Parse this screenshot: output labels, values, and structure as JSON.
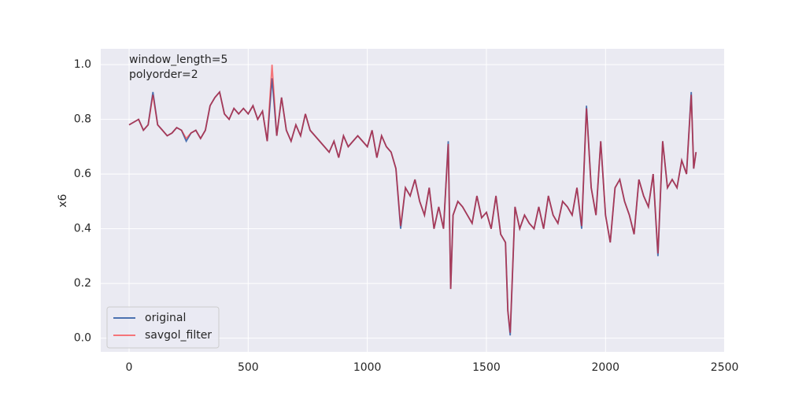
{
  "chart_data": {
    "type": "line",
    "y_label": "x6",
    "annotations": [
      "window_length=5",
      "polyorder=2"
    ],
    "x": [
      0,
      20,
      40,
      60,
      80,
      100,
      120,
      140,
      160,
      180,
      200,
      220,
      240,
      260,
      280,
      300,
      320,
      340,
      360,
      380,
      400,
      420,
      440,
      460,
      480,
      500,
      520,
      540,
      560,
      580,
      600,
      620,
      640,
      660,
      680,
      700,
      720,
      740,
      760,
      780,
      800,
      820,
      840,
      860,
      880,
      900,
      920,
      940,
      960,
      980,
      1000,
      1020,
      1040,
      1060,
      1080,
      1100,
      1120,
      1140,
      1160,
      1180,
      1200,
      1220,
      1240,
      1260,
      1280,
      1300,
      1320,
      1340,
      1350,
      1360,
      1380,
      1400,
      1420,
      1440,
      1460,
      1480,
      1500,
      1520,
      1540,
      1560,
      1580,
      1590,
      1600,
      1620,
      1640,
      1660,
      1680,
      1700,
      1720,
      1740,
      1760,
      1780,
      1800,
      1820,
      1840,
      1860,
      1880,
      1900,
      1920,
      1940,
      1960,
      1980,
      2000,
      2020,
      2040,
      2060,
      2080,
      2100,
      2120,
      2140,
      2160,
      2180,
      2200,
      2220,
      2240,
      2260,
      2280,
      2300,
      2320,
      2340,
      2360,
      2370,
      2380
    ],
    "series": [
      {
        "name": "original",
        "color": "#4c72b0",
        "alpha": 1,
        "values": [
          0.78,
          0.79,
          0.8,
          0.76,
          0.78,
          0.9,
          0.78,
          0.76,
          0.74,
          0.75,
          0.77,
          0.76,
          0.72,
          0.75,
          0.76,
          0.73,
          0.76,
          0.85,
          0.88,
          0.9,
          0.82,
          0.8,
          0.84,
          0.82,
          0.84,
          0.82,
          0.85,
          0.8,
          0.83,
          0.72,
          0.95,
          0.74,
          0.88,
          0.76,
          0.72,
          0.78,
          0.74,
          0.82,
          0.76,
          0.74,
          0.72,
          0.7,
          0.68,
          0.72,
          0.66,
          0.74,
          0.7,
          0.72,
          0.74,
          0.72,
          0.7,
          0.76,
          0.66,
          0.74,
          0.7,
          0.68,
          0.62,
          0.4,
          0.55,
          0.52,
          0.58,
          0.5,
          0.45,
          0.55,
          0.4,
          0.48,
          0.4,
          0.72,
          0.18,
          0.45,
          0.5,
          0.48,
          0.45,
          0.42,
          0.52,
          0.44,
          0.46,
          0.4,
          0.52,
          0.38,
          0.35,
          0.1,
          0.01,
          0.48,
          0.4,
          0.45,
          0.42,
          0.4,
          0.48,
          0.4,
          0.52,
          0.45,
          0.42,
          0.5,
          0.48,
          0.45,
          0.55,
          0.4,
          0.85,
          0.55,
          0.45,
          0.72,
          0.45,
          0.35,
          0.55,
          0.58,
          0.5,
          0.45,
          0.38,
          0.58,
          0.52,
          0.48,
          0.6,
          0.3,
          0.72,
          0.55,
          0.58,
          0.55,
          0.65,
          0.6,
          0.9,
          0.62,
          0.68
        ]
      },
      {
        "name": "savgol_filter",
        "color": "#ff0000",
        "alpha": 0.5,
        "values": [
          0.78,
          0.79,
          0.8,
          0.76,
          0.78,
          0.89,
          0.78,
          0.76,
          0.74,
          0.75,
          0.77,
          0.76,
          0.73,
          0.75,
          0.76,
          0.73,
          0.76,
          0.85,
          0.88,
          0.9,
          0.82,
          0.8,
          0.84,
          0.82,
          0.84,
          0.82,
          0.85,
          0.8,
          0.83,
          0.72,
          1.0,
          0.74,
          0.88,
          0.76,
          0.72,
          0.78,
          0.74,
          0.82,
          0.76,
          0.74,
          0.72,
          0.7,
          0.68,
          0.72,
          0.66,
          0.74,
          0.7,
          0.72,
          0.74,
          0.72,
          0.7,
          0.76,
          0.66,
          0.74,
          0.7,
          0.68,
          0.62,
          0.41,
          0.55,
          0.52,
          0.58,
          0.5,
          0.45,
          0.55,
          0.4,
          0.48,
          0.4,
          0.71,
          0.18,
          0.45,
          0.5,
          0.48,
          0.45,
          0.42,
          0.52,
          0.44,
          0.46,
          0.4,
          0.52,
          0.38,
          0.35,
          0.1,
          0.02,
          0.48,
          0.4,
          0.45,
          0.42,
          0.4,
          0.48,
          0.4,
          0.52,
          0.45,
          0.42,
          0.5,
          0.48,
          0.45,
          0.55,
          0.41,
          0.84,
          0.55,
          0.45,
          0.72,
          0.45,
          0.35,
          0.55,
          0.58,
          0.5,
          0.45,
          0.38,
          0.58,
          0.52,
          0.48,
          0.6,
          0.31,
          0.72,
          0.55,
          0.58,
          0.55,
          0.65,
          0.6,
          0.89,
          0.62,
          0.68
        ]
      }
    ],
    "xlim": [
      -119,
      2498
    ],
    "ylim": [
      -0.05,
      1.058
    ],
    "xticks": [
      0,
      500,
      1000,
      1500,
      2000,
      2500
    ],
    "yticks": [
      {
        "value": 0,
        "label": "0.0"
      },
      0.2,
      0.4,
      0.6,
      0.8,
      {
        "value": 1,
        "label": "1.0"
      }
    ],
    "grid": true,
    "legend": "lower left"
  }
}
